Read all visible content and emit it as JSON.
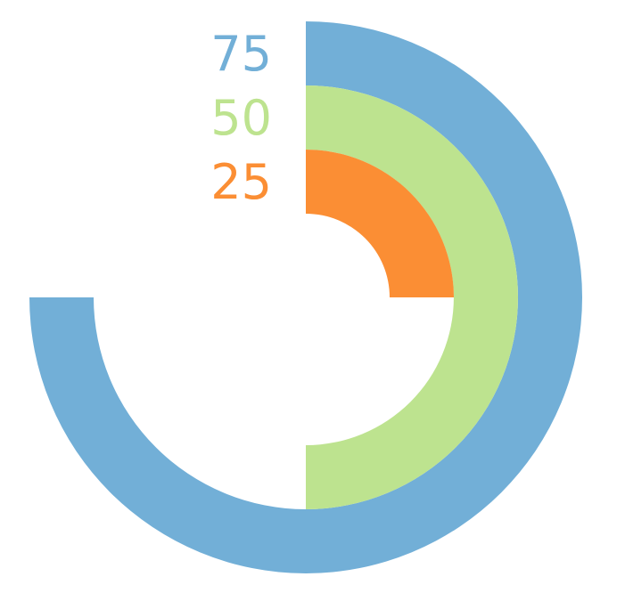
{
  "chart_data": {
    "type": "radial-bar",
    "max": 100,
    "grid": false,
    "legend": "none",
    "rings": [
      {
        "label": "75",
        "value": 75,
        "color": "#72afd7"
      },
      {
        "label": "50",
        "value": 50,
        "color": "#bde38f"
      },
      {
        "label": "25",
        "value": 25,
        "color": "#fb8e34"
      }
    ]
  }
}
